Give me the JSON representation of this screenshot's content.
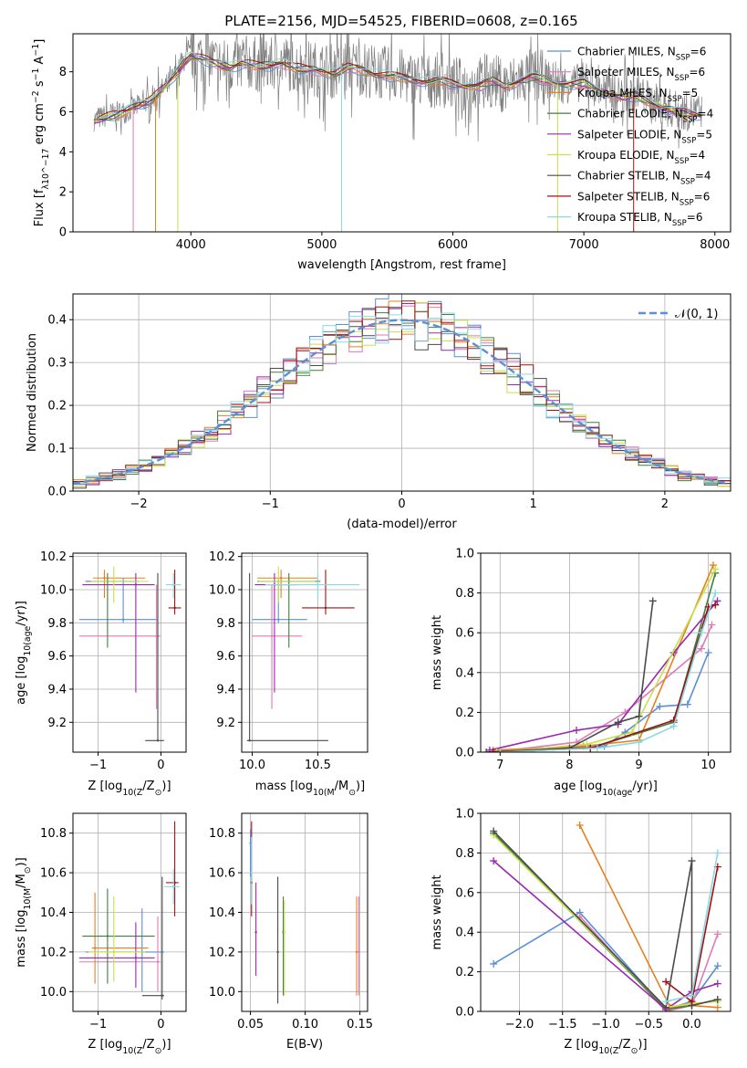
{
  "figure_title": "PLATE=2156, MJD=54525, FIBERID=0608, z=0.165",
  "colors": {
    "Chabrier MILES": "#5b8fd6",
    "Salpeter MILES": "#e07ab8",
    "Kroupa MILES": "#e6801f",
    "Chabrier ELODIE": "#3f7f3f",
    "Salpeter ELODIE": "#9b27b0",
    "Kroupa ELODIE": "#c8e04a",
    "Chabrier STELIB": "#4a4a4a",
    "Salpeter STELIB": "#a01010",
    "Kroupa STELIB": "#8ad8e4",
    "data": "#808080",
    "gaussian": "#5b8fd6"
  },
  "chart_data": [
    {
      "type": "line",
      "name": "spectrum",
      "title": "PLATE=2156, MJD=54525, FIBERID=0608, z=0.165",
      "xlabel": "wavelength [Angstrom, rest frame]",
      "ylabel": "Flux [f_λ10^-17 erg cm^-2 s^-1 A^-1]",
      "xlim": [
        3100,
        8120
      ],
      "ylim": [
        0,
        9.9
      ],
      "xticks": [
        4000,
        5000,
        6000,
        7000,
        8000
      ],
      "yticks": [
        0,
        2,
        4,
        6,
        8
      ],
      "grid": false,
      "legend_position": "right",
      "legend": [
        "Chabrier MILES, N_SSP=6",
        "Salpeter MILES, N_SSP=6",
        "Kroupa MILES, N_SSP=5",
        "Chabrier ELODIE, N_SSP=4",
        "Salpeter ELODIE, N_SSP=5",
        "Kroupa ELODIE, N_SSP=4",
        "Chabrier STELIB, N_SSP=4",
        "Salpeter STELIB, N_SSP=6",
        "Kroupa STELIB, N_SSP=6"
      ],
      "legend_names": [
        "Chabrier MILES",
        "Salpeter MILES",
        "Kroupa MILES",
        "Chabrier ELODIE",
        "Salpeter ELODIE",
        "Kroupa ELODIE",
        "Chabrier STELIB",
        "Salpeter STELIB",
        "Kroupa STELIB"
      ],
      "data_x": [
        3260,
        3400,
        3500,
        3600,
        3700,
        3800,
        3900,
        3950,
        4000,
        4100,
        4200,
        4300,
        4400,
        4500,
        4600,
        4700,
        4800,
        4900,
        5000,
        5100,
        5200,
        5300,
        5400,
        5500,
        5600,
        5700,
        5800,
        5900,
        6000,
        6100,
        6200,
        6300,
        6400,
        6500,
        6600,
        6700,
        6800,
        6900,
        7000,
        7100,
        7200,
        7300,
        7400,
        7500,
        7600,
        7700,
        7800,
        7900
      ],
      "data_y": [
        5.6,
        5.9,
        6.0,
        6.3,
        6.7,
        7.2,
        8.0,
        8.6,
        8.9,
        8.7,
        8.4,
        8.3,
        8.5,
        8.4,
        8.3,
        8.5,
        8.3,
        8.2,
        8.1,
        8.0,
        8.3,
        8.2,
        8.0,
        7.9,
        7.8,
        7.6,
        7.5,
        7.6,
        7.4,
        7.3,
        7.4,
        7.6,
        7.3,
        7.6,
        7.8,
        7.7,
        7.4,
        7.4,
        7.5,
        7.2,
        7.0,
        6.8,
        6.9,
        6.6,
        6.3,
        6.1,
        6.0,
        5.9
      ],
      "model_y": [
        5.5,
        5.8,
        6.0,
        6.3,
        6.6,
        7.2,
        8.0,
        8.5,
        8.8,
        8.6,
        8.4,
        8.2,
        8.4,
        8.3,
        8.3,
        8.4,
        8.2,
        8.1,
        8.0,
        7.9,
        8.2,
        8.1,
        7.9,
        7.8,
        7.7,
        7.6,
        7.5,
        7.5,
        7.4,
        7.3,
        7.3,
        7.5,
        7.3,
        7.5,
        7.7,
        7.6,
        7.4,
        7.4,
        7.4,
        7.1,
        6.9,
        6.7,
        6.8,
        6.5,
        6.2,
        6.0,
        5.9,
        5.8
      ]
    },
    {
      "type": "histogram",
      "name": "residuals",
      "xlabel": "(data-model)/error",
      "ylabel": "Normed distribution",
      "xlim": [
        -2.5,
        2.5
      ],
      "ylim": [
        0,
        0.46
      ],
      "xticks": [
        -2,
        -1,
        0,
        1,
        2
      ],
      "yticks": [
        0.0,
        0.1,
        0.2,
        0.3,
        0.4
      ],
      "grid": true,
      "legend_position": "upper right",
      "legend": [
        "𝒩(0, 1)"
      ],
      "bin_width": 0.1
    },
    {
      "type": "scatter",
      "name": "age-vs-Z",
      "xlabel": "Z [log10(Z/Z⊙)]",
      "ylabel": "age  [log10(age/yr)]",
      "xlim": [
        -1.4,
        0.4
      ],
      "ylim": [
        9.02,
        10.22
      ],
      "xticks": [
        -1,
        0
      ],
      "yticks": [
        9.2,
        9.4,
        9.6,
        9.8,
        10.0,
        10.2
      ],
      "grid": true,
      "points": [
        {
          "model": "Chabrier MILES",
          "x": -0.6,
          "xlo": -1.3,
          "xhi": -0.05,
          "y": 9.82,
          "ylo": 9.8,
          "yhi": 10.07
        },
        {
          "model": "Salpeter MILES",
          "x": -0.07,
          "xlo": -1.3,
          "xhi": -0.01,
          "y": 9.72,
          "ylo": 9.28,
          "yhi": 10.03
        },
        {
          "model": "Kroupa MILES",
          "x": -0.9,
          "xlo": -1.08,
          "xhi": -0.25,
          "y": 10.07,
          "ylo": 9.95,
          "yhi": 10.12
        },
        {
          "model": "Chabrier ELODIE",
          "x": -0.85,
          "xlo": -1.2,
          "xhi": -0.35,
          "y": 10.05,
          "ylo": 9.65,
          "yhi": 10.1
        },
        {
          "model": "Salpeter ELODIE",
          "x": -0.4,
          "xlo": -1.25,
          "xhi": -0.1,
          "y": 10.03,
          "ylo": 9.38,
          "yhi": 10.1
        },
        {
          "model": "Kroupa ELODIE",
          "x": -0.75,
          "xlo": -1.12,
          "xhi": -0.2,
          "y": 10.05,
          "ylo": 9.92,
          "yhi": 10.14
        },
        {
          "model": "Chabrier STELIB",
          "x": -0.05,
          "xlo": -0.25,
          "xhi": 0.05,
          "y": 9.09,
          "ylo": 9.09,
          "yhi": 10.1
        },
        {
          "model": "Salpeter STELIB",
          "x": 0.22,
          "xlo": 0.12,
          "xhi": 0.32,
          "y": 9.89,
          "ylo": 9.85,
          "yhi": 10.12
        },
        {
          "model": "Kroupa STELIB",
          "x": 0.2,
          "xlo": 0.08,
          "xhi": 0.32,
          "y": 10.03,
          "ylo": 9.95,
          "yhi": 10.1
        }
      ]
    },
    {
      "type": "scatter",
      "name": "age-vs-mass",
      "xlabel": "mass [log10(M/M⊙)]",
      "ylabel": "",
      "xlim": [
        9.92,
        10.88
      ],
      "ylim": [
        9.02,
        10.22
      ],
      "xticks": [
        10.0,
        10.5
      ],
      "yticks": [
        9.2,
        9.4,
        9.6,
        9.8,
        10.0,
        10.2
      ],
      "grid": true,
      "points": [
        {
          "model": "Chabrier MILES",
          "x": 10.2,
          "xlo": 10.0,
          "xhi": 10.42,
          "y": 9.82,
          "ylo": 9.8,
          "yhi": 10.07
        },
        {
          "model": "Salpeter MILES",
          "x": 10.15,
          "xlo": 10.0,
          "xhi": 10.38,
          "y": 9.72,
          "ylo": 9.28,
          "yhi": 10.03
        },
        {
          "model": "Kroupa MILES",
          "x": 10.22,
          "xlo": 10.04,
          "xhi": 10.5,
          "y": 10.07,
          "ylo": 9.95,
          "yhi": 10.12
        },
        {
          "model": "Chabrier ELODIE",
          "x": 10.28,
          "xlo": 10.04,
          "xhi": 10.52,
          "y": 10.05,
          "ylo": 9.65,
          "yhi": 10.1
        },
        {
          "model": "Salpeter ELODIE",
          "x": 10.17,
          "xlo": 10.02,
          "xhi": 10.35,
          "y": 10.03,
          "ylo": 9.38,
          "yhi": 10.1
        },
        {
          "model": "Kroupa ELODIE",
          "x": 10.2,
          "xlo": 10.05,
          "xhi": 10.48,
          "y": 10.05,
          "ylo": 9.92,
          "yhi": 10.14
        },
        {
          "model": "Chabrier STELIB",
          "x": 9.98,
          "xlo": 9.96,
          "xhi": 10.58,
          "y": 9.09,
          "ylo": 9.09,
          "yhi": 10.1
        },
        {
          "model": "Salpeter STELIB",
          "x": 10.56,
          "xlo": 10.38,
          "xhi": 10.78,
          "y": 9.89,
          "ylo": 9.85,
          "yhi": 10.12
        },
        {
          "model": "Kroupa STELIB",
          "x": 10.5,
          "xlo": 10.1,
          "xhi": 10.82,
          "y": 10.03,
          "ylo": 9.95,
          "yhi": 10.1
        }
      ]
    },
    {
      "type": "line",
      "name": "weight-vs-age",
      "xlabel": "age  [log10(age/yr)]",
      "ylabel": "mass weight",
      "xlim": [
        6.72,
        10.32
      ],
      "ylim": [
        0,
        1.0
      ],
      "xticks": [
        7,
        8,
        9,
        10
      ],
      "yticks": [
        0.0,
        0.2,
        0.4,
        0.6,
        0.8,
        1.0
      ],
      "grid": true,
      "series": [
        {
          "model": "Chabrier MILES",
          "x": [
            6.85,
            8.5,
            8.8,
            9.3,
            9.7,
            10.0
          ],
          "y": [
            0.0,
            0.03,
            0.1,
            0.23,
            0.24,
            0.5
          ]
        },
        {
          "model": "Salpeter MILES",
          "x": [
            6.9,
            8.1,
            8.8,
            9.9,
            10.05
          ],
          "y": [
            0.0,
            0.05,
            0.2,
            0.52,
            0.64
          ]
        },
        {
          "model": "Kroupa MILES",
          "x": [
            6.9,
            8.2,
            9.0,
            10.07
          ],
          "y": [
            0.01,
            0.03,
            0.06,
            0.94
          ]
        },
        {
          "model": "Chabrier ELODIE",
          "x": [
            7.0,
            8.3,
            9.5,
            10.1
          ],
          "y": [
            0.0,
            0.02,
            0.15,
            0.9
          ]
        },
        {
          "model": "Salpeter ELODIE",
          "x": [
            6.85,
            8.1,
            8.7,
            9.5,
            10.13
          ],
          "y": [
            0.01,
            0.11,
            0.14,
            0.5,
            0.76
          ]
        },
        {
          "model": "Kroupa ELODIE",
          "x": [
            6.95,
            8.25,
            8.9,
            10.1
          ],
          "y": [
            0.0,
            0.04,
            0.1,
            0.92
          ]
        },
        {
          "model": "Chabrier STELIB",
          "x": [
            6.8,
            8.0,
            8.7,
            9.0,
            9.2
          ],
          "y": [
            0.0,
            0.02,
            0.15,
            0.18,
            0.76
          ]
        },
        {
          "model": "Salpeter STELIB",
          "x": [
            6.9,
            8.3,
            9.5,
            10.0,
            10.1
          ],
          "y": [
            0.0,
            0.02,
            0.16,
            0.73,
            0.74
          ]
        },
        {
          "model": "Kroupa STELIB",
          "x": [
            7.0,
            8.4,
            9.0,
            9.5,
            9.9,
            10.1
          ],
          "y": [
            0.0,
            0.02,
            0.05,
            0.13,
            0.6,
            0.8
          ]
        }
      ]
    },
    {
      "type": "scatter",
      "name": "mass-vs-Z",
      "xlabel": "Z [log10(Z/Z⊙)]",
      "ylabel": "mass [log10(M/M⊙)]",
      "xlim": [
        -1.4,
        0.4
      ],
      "ylim": [
        9.9,
        10.9
      ],
      "xticks": [
        -1,
        0
      ],
      "yticks": [
        10.0,
        10.2,
        10.4,
        10.6,
        10.8
      ],
      "grid": true,
      "points": [
        {
          "model": "Chabrier MILES",
          "x": -0.3,
          "xlo": -1.2,
          "xhi": 0.05,
          "y": 10.2,
          "ylo": 10.0,
          "yhi": 10.42
        },
        {
          "model": "Salpeter MILES",
          "x": -0.05,
          "xlo": -1.3,
          "xhi": -0.01,
          "y": 10.15,
          "ylo": 10.0,
          "yhi": 10.38
        },
        {
          "model": "Kroupa MILES",
          "x": -1.05,
          "xlo": -1.1,
          "xhi": -0.2,
          "y": 10.22,
          "ylo": 10.04,
          "yhi": 10.5
        },
        {
          "model": "Chabrier ELODIE",
          "x": -0.85,
          "xlo": -1.25,
          "xhi": -0.1,
          "y": 10.28,
          "ylo": 10.04,
          "yhi": 10.52
        },
        {
          "model": "Salpeter ELODIE",
          "x": -0.4,
          "xlo": -1.3,
          "xhi": -0.1,
          "y": 10.17,
          "ylo": 10.02,
          "yhi": 10.35
        },
        {
          "model": "Kroupa ELODIE",
          "x": -0.75,
          "xlo": -1.15,
          "xhi": -0.25,
          "y": 10.2,
          "ylo": 10.05,
          "yhi": 10.48
        },
        {
          "model": "Chabrier STELIB",
          "x": 0.02,
          "xlo": -0.3,
          "xhi": 0.05,
          "y": 9.98,
          "ylo": 9.96,
          "yhi": 10.58
        },
        {
          "model": "Salpeter STELIB",
          "x": 0.22,
          "xlo": 0.08,
          "xhi": 0.28,
          "y": 10.55,
          "ylo": 10.38,
          "yhi": 10.86
        },
        {
          "model": "Kroupa STELIB",
          "x": 0.2,
          "xlo": 0.05,
          "xhi": 0.3,
          "y": 10.53,
          "ylo": 10.44,
          "yhi": 10.62
        }
      ]
    },
    {
      "type": "scatter",
      "name": "mass-vs-EBV",
      "xlabel": "E(B-V)",
      "ylabel": "",
      "xlim": [
        0.042,
        0.157
      ],
      "ylim": [
        9.9,
        10.9
      ],
      "xticks": [
        0.05,
        0.1,
        0.15
      ],
      "yticks": [
        10.0,
        10.2,
        10.4,
        10.6,
        10.8
      ],
      "grid": true,
      "points": [
        {
          "model": "Chabrier MILES",
          "x": 0.05,
          "y": 10.75,
          "ylo": 10.58,
          "yhi": 10.82
        },
        {
          "model": "Salpeter MILES",
          "x": 0.149,
          "y": 10.2,
          "ylo": 9.98,
          "yhi": 10.48
        },
        {
          "model": "Kroupa MILES",
          "x": 0.147,
          "y": 10.2,
          "ylo": 9.98,
          "yhi": 10.48
        },
        {
          "model": "Chabrier ELODIE",
          "x": 0.08,
          "y": 10.3,
          "ylo": 9.98,
          "yhi": 10.48
        },
        {
          "model": "Salpeter ELODIE",
          "x": 0.055,
          "y": 10.3,
          "ylo": 10.08,
          "yhi": 10.55
        },
        {
          "model": "Kroupa ELODIE",
          "x": 0.081,
          "y": 10.3,
          "ylo": 9.98,
          "yhi": 10.46
        },
        {
          "model": "Chabrier STELIB",
          "x": 0.075,
          "y": 10.2,
          "ylo": 9.94,
          "yhi": 10.58
        },
        {
          "model": "Salpeter STELIB",
          "x": 0.051,
          "y": 10.55,
          "ylo": 10.38,
          "yhi": 10.86
        },
        {
          "model": "Kroupa STELIB",
          "x": 0.051,
          "y": 10.6,
          "ylo": 10.44,
          "yhi": 10.78
        }
      ]
    },
    {
      "type": "line",
      "name": "weight-vs-Z",
      "xlabel": "Z [log10(Z/Z⊙)]",
      "ylabel": "mass weight",
      "xlim": [
        -2.45,
        0.45
      ],
      "ylim": [
        0,
        1.0
      ],
      "xticks": [
        -2.0,
        -1.5,
        -1.0,
        -0.5,
        0.0
      ],
      "yticks": [
        0.0,
        0.2,
        0.4,
        0.6,
        0.8,
        1.0
      ],
      "grid": true,
      "series": [
        {
          "model": "Chabrier MILES",
          "x": [
            -2.3,
            -1.3,
            -0.3,
            0.0,
            0.3
          ],
          "y": [
            0.24,
            0.5,
            0.01,
            0.05,
            0.23
          ]
        },
        {
          "model": "Salpeter MILES",
          "x": [
            -1.3,
            -0.3,
            0.0,
            0.3
          ],
          "y": [
            0.48,
            0.0,
            0.03,
            0.39
          ]
        },
        {
          "model": "Kroupa MILES",
          "x": [
            -1.3,
            -0.25,
            0.0,
            0.3
          ],
          "y": [
            0.94,
            0.02,
            0.03,
            0.02
          ]
        },
        {
          "model": "Chabrier ELODIE",
          "x": [
            -2.3,
            -0.3,
            0.0,
            0.3
          ],
          "y": [
            0.9,
            0.01,
            0.03,
            0.06
          ]
        },
        {
          "model": "Salpeter ELODIE",
          "x": [
            -2.3,
            -0.3,
            0.0,
            0.3
          ],
          "y": [
            0.76,
            0.01,
            0.1,
            0.14
          ]
        },
        {
          "model": "Kroupa ELODIE",
          "x": [
            -2.3,
            -0.3,
            0.0,
            0.3
          ],
          "y": [
            0.89,
            0.02,
            0.04,
            0.05
          ]
        },
        {
          "model": "Chabrier STELIB",
          "x": [
            -2.3,
            -0.3,
            0.0,
            0.0,
            0.3
          ],
          "y": [
            0.91,
            0.02,
            0.76,
            0.03,
            0.06
          ]
        },
        {
          "model": "Salpeter STELIB",
          "x": [
            -0.3,
            0.0,
            0.3
          ],
          "y": [
            0.15,
            0.05,
            0.73
          ]
        },
        {
          "model": "Kroupa STELIB",
          "x": [
            -0.3,
            0.0,
            0.3
          ],
          "y": [
            0.05,
            0.08,
            0.8
          ]
        }
      ]
    }
  ]
}
